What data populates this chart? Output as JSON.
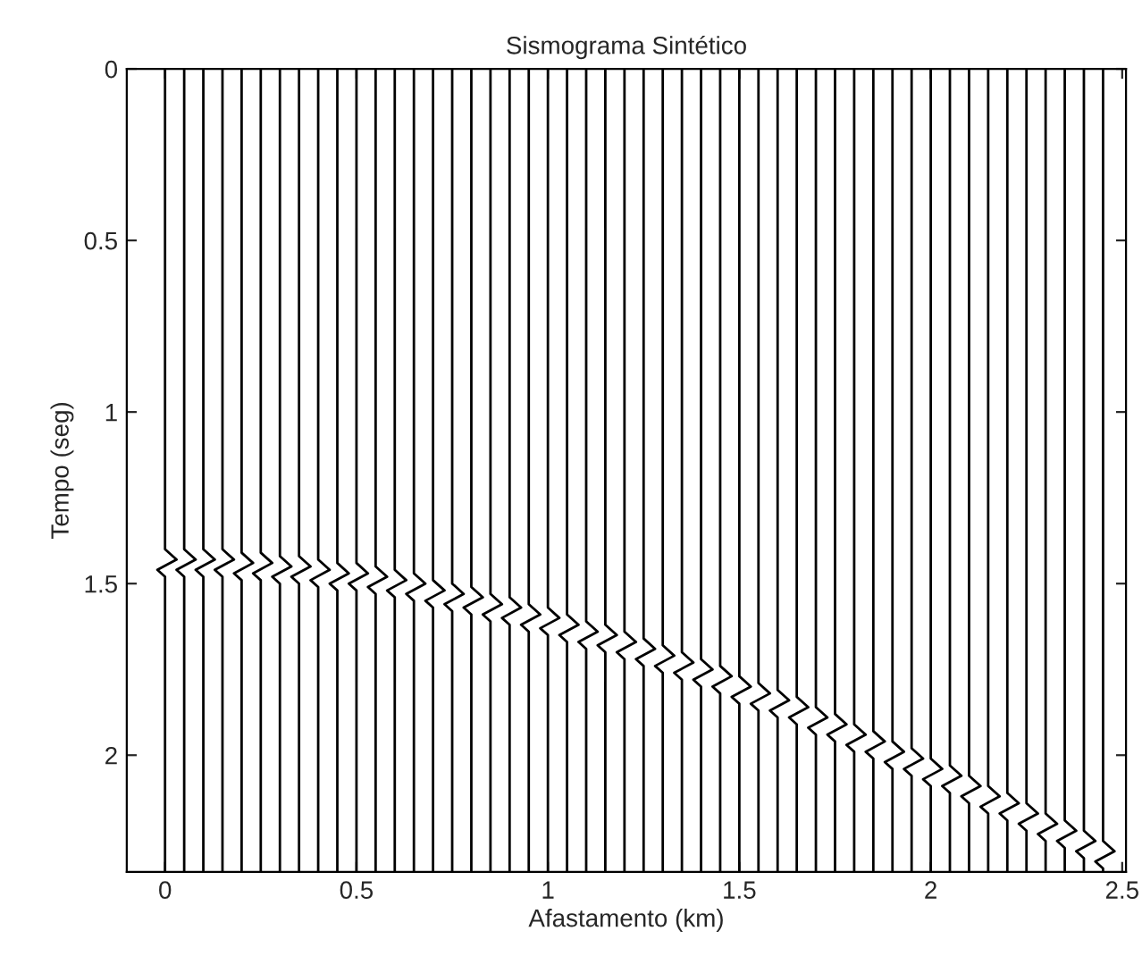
{
  "chart_data": {
    "type": "line",
    "title": "Sismograma Sintético",
    "xlabel": "Afastamento (km)",
    "ylabel": "Tempo (seg)",
    "color": "#000000",
    "grid": false,
    "legend": false,
    "marker": "none",
    "line_style": "solid",
    "xlim": [
      -0.1,
      2.51
    ],
    "xticks": [
      0,
      0.5,
      1,
      1.5,
      2,
      2.5
    ],
    "ylim": [
      2.34,
      0
    ],
    "yticks": [
      0,
      0.5,
      1,
      1.5,
      2
    ],
    "series": [
      {
        "x": [
          0,
          0,
          0.03,
          -0.02,
          0,
          0
        ],
        "values": [
          0,
          1.4,
          1.43,
          1.46,
          1.48,
          2.34
        ]
      },
      {
        "x": [
          0.05,
          0.05,
          0.08,
          0.03,
          0.05,
          0.05
        ],
        "values": [
          0,
          1.4,
          1.43,
          1.46,
          1.48,
          2.34
        ]
      },
      {
        "x": [
          0.1,
          0.1,
          0.13,
          0.08,
          0.1,
          0.1
        ],
        "values": [
          0,
          1.4,
          1.43,
          1.46,
          1.48,
          2.34
        ]
      },
      {
        "x": [
          0.15,
          0.15,
          0.18,
          0.13,
          0.15,
          0.15
        ],
        "values": [
          0,
          1.4,
          1.43,
          1.46,
          1.48,
          2.34
        ]
      },
      {
        "x": [
          0.2,
          0.2,
          0.23,
          0.18,
          0.2,
          0.2
        ],
        "values": [
          0,
          1.41,
          1.44,
          1.47,
          1.49,
          2.34
        ]
      },
      {
        "x": [
          0.25,
          0.25,
          0.28,
          0.23,
          0.25,
          0.25
        ],
        "values": [
          0,
          1.41,
          1.44,
          1.47,
          1.49,
          2.34
        ]
      },
      {
        "x": [
          0.3,
          0.3,
          0.33,
          0.28,
          0.3,
          0.3
        ],
        "values": [
          0,
          1.42,
          1.45,
          1.48,
          1.5,
          2.34
        ]
      },
      {
        "x": [
          0.35,
          0.35,
          0.38,
          0.33,
          0.35,
          0.35
        ],
        "values": [
          0,
          1.42,
          1.45,
          1.48,
          1.5,
          2.34
        ]
      },
      {
        "x": [
          0.4,
          0.4,
          0.43,
          0.38,
          0.4,
          0.4
        ],
        "values": [
          0,
          1.43,
          1.46,
          1.49,
          1.51,
          2.34
        ]
      },
      {
        "x": [
          0.45,
          0.45,
          0.48,
          0.43,
          0.45,
          0.45
        ],
        "values": [
          0,
          1.44,
          1.47,
          1.5,
          1.52,
          2.34
        ]
      },
      {
        "x": [
          0.5,
          0.5,
          0.53,
          0.48,
          0.5,
          0.5
        ],
        "values": [
          0,
          1.44,
          1.47,
          1.5,
          1.52,
          2.34
        ]
      },
      {
        "x": [
          0.55,
          0.55,
          0.58,
          0.53,
          0.55,
          0.55
        ],
        "values": [
          0,
          1.45,
          1.48,
          1.51,
          1.53,
          2.34
        ]
      },
      {
        "x": [
          0.6,
          0.6,
          0.63,
          0.58,
          0.6,
          0.6
        ],
        "values": [
          0,
          1.46,
          1.49,
          1.52,
          1.54,
          2.34
        ]
      },
      {
        "x": [
          0.65,
          0.65,
          0.68,
          0.63,
          0.65,
          0.65
        ],
        "values": [
          0,
          1.47,
          1.5,
          1.53,
          1.55,
          2.34
        ]
      },
      {
        "x": [
          0.7,
          0.7,
          0.73,
          0.68,
          0.7,
          0.7
        ],
        "values": [
          0,
          1.49,
          1.52,
          1.55,
          1.57,
          2.34
        ]
      },
      {
        "x": [
          0.75,
          0.75,
          0.78,
          0.73,
          0.75,
          0.75
        ],
        "values": [
          0,
          1.5,
          1.53,
          1.56,
          1.58,
          2.34
        ]
      },
      {
        "x": [
          0.8,
          0.8,
          0.83,
          0.78,
          0.8,
          0.8
        ],
        "values": [
          0,
          1.51,
          1.54,
          1.57,
          1.59,
          2.34
        ]
      },
      {
        "x": [
          0.85,
          0.85,
          0.88,
          0.83,
          0.85,
          0.85
        ],
        "values": [
          0,
          1.53,
          1.56,
          1.59,
          1.61,
          2.34
        ]
      },
      {
        "x": [
          0.9,
          0.9,
          0.93,
          0.88,
          0.9,
          0.9
        ],
        "values": [
          0,
          1.54,
          1.57,
          1.6,
          1.62,
          2.34
        ]
      },
      {
        "x": [
          0.95,
          0.95,
          0.98,
          0.93,
          0.95,
          0.95
        ],
        "values": [
          0,
          1.56,
          1.59,
          1.62,
          1.64,
          2.34
        ]
      },
      {
        "x": [
          1.0,
          1.0,
          1.03,
          0.98,
          1.0,
          1.0
        ],
        "values": [
          0,
          1.57,
          1.6,
          1.63,
          1.65,
          2.34
        ]
      },
      {
        "x": [
          1.05,
          1.05,
          1.08,
          1.03,
          1.05,
          1.05
        ],
        "values": [
          0,
          1.59,
          1.62,
          1.65,
          1.67,
          2.34
        ]
      },
      {
        "x": [
          1.1,
          1.1,
          1.13,
          1.08,
          1.1,
          1.1
        ],
        "values": [
          0,
          1.61,
          1.64,
          1.67,
          1.69,
          2.34
        ]
      },
      {
        "x": [
          1.15,
          1.15,
          1.18,
          1.13,
          1.15,
          1.15
        ],
        "values": [
          0,
          1.62,
          1.65,
          1.68,
          1.7,
          2.34
        ]
      },
      {
        "x": [
          1.2,
          1.2,
          1.23,
          1.18,
          1.2,
          1.2
        ],
        "values": [
          0,
          1.64,
          1.67,
          1.7,
          1.72,
          2.34
        ]
      },
      {
        "x": [
          1.25,
          1.25,
          1.28,
          1.23,
          1.25,
          1.25
        ],
        "values": [
          0,
          1.66,
          1.69,
          1.72,
          1.74,
          2.34
        ]
      },
      {
        "x": [
          1.3,
          1.3,
          1.33,
          1.28,
          1.3,
          1.3
        ],
        "values": [
          0,
          1.68,
          1.71,
          1.74,
          1.76,
          2.34
        ]
      },
      {
        "x": [
          1.35,
          1.35,
          1.38,
          1.33,
          1.35,
          1.35
        ],
        "values": [
          0,
          1.7,
          1.73,
          1.76,
          1.78,
          2.34
        ]
      },
      {
        "x": [
          1.4,
          1.4,
          1.43,
          1.38,
          1.4,
          1.4
        ],
        "values": [
          0,
          1.72,
          1.75,
          1.78,
          1.8,
          2.34
        ]
      },
      {
        "x": [
          1.45,
          1.45,
          1.48,
          1.43,
          1.45,
          1.45
        ],
        "values": [
          0,
          1.74,
          1.77,
          1.8,
          1.82,
          2.34
        ]
      },
      {
        "x": [
          1.5,
          1.5,
          1.53,
          1.48,
          1.5,
          1.5
        ],
        "values": [
          0,
          1.77,
          1.8,
          1.83,
          1.85,
          2.34
        ]
      },
      {
        "x": [
          1.55,
          1.55,
          1.58,
          1.53,
          1.55,
          1.55
        ],
        "values": [
          0,
          1.79,
          1.82,
          1.85,
          1.87,
          2.34
        ]
      },
      {
        "x": [
          1.6,
          1.6,
          1.63,
          1.58,
          1.6,
          1.6
        ],
        "values": [
          0,
          1.81,
          1.84,
          1.87,
          1.89,
          2.34
        ]
      },
      {
        "x": [
          1.65,
          1.65,
          1.68,
          1.63,
          1.65,
          1.65
        ],
        "values": [
          0,
          1.83,
          1.86,
          1.89,
          1.91,
          2.34
        ]
      },
      {
        "x": [
          1.7,
          1.7,
          1.73,
          1.68,
          1.7,
          1.7
        ],
        "values": [
          0,
          1.86,
          1.89,
          1.92,
          1.94,
          2.34
        ]
      },
      {
        "x": [
          1.75,
          1.75,
          1.78,
          1.73,
          1.75,
          1.75
        ],
        "values": [
          0,
          1.88,
          1.91,
          1.94,
          1.96,
          2.34
        ]
      },
      {
        "x": [
          1.8,
          1.8,
          1.83,
          1.78,
          1.8,
          1.8
        ],
        "values": [
          0,
          1.91,
          1.94,
          1.97,
          1.99,
          2.34
        ]
      },
      {
        "x": [
          1.85,
          1.85,
          1.88,
          1.83,
          1.85,
          1.85
        ],
        "values": [
          0,
          1.93,
          1.96,
          1.99,
          2.01,
          2.34
        ]
      },
      {
        "x": [
          1.9,
          1.9,
          1.93,
          1.88,
          1.9,
          1.9
        ],
        "values": [
          0,
          1.96,
          1.99,
          2.02,
          2.04,
          2.34
        ]
      },
      {
        "x": [
          1.95,
          1.95,
          1.98,
          1.93,
          1.95,
          1.95
        ],
        "values": [
          0,
          1.98,
          2.01,
          2.04,
          2.06,
          2.34
        ]
      },
      {
        "x": [
          2.0,
          2.0,
          2.03,
          1.98,
          2.0,
          2.0
        ],
        "values": [
          0,
          2.01,
          2.04,
          2.07,
          2.09,
          2.34
        ]
      },
      {
        "x": [
          2.05,
          2.05,
          2.08,
          2.03,
          2.05,
          2.05
        ],
        "values": [
          0,
          2.03,
          2.06,
          2.09,
          2.11,
          2.34
        ]
      },
      {
        "x": [
          2.1,
          2.1,
          2.13,
          2.08,
          2.1,
          2.1
        ],
        "values": [
          0,
          2.06,
          2.09,
          2.12,
          2.14,
          2.34
        ]
      },
      {
        "x": [
          2.15,
          2.15,
          2.18,
          2.13,
          2.15,
          2.15
        ],
        "values": [
          0,
          2.09,
          2.12,
          2.15,
          2.17,
          2.34
        ]
      },
      {
        "x": [
          2.2,
          2.2,
          2.23,
          2.18,
          2.2,
          2.2
        ],
        "values": [
          0,
          2.11,
          2.14,
          2.17,
          2.19,
          2.34
        ]
      },
      {
        "x": [
          2.25,
          2.25,
          2.28,
          2.23,
          2.25,
          2.25
        ],
        "values": [
          0,
          2.14,
          2.17,
          2.2,
          2.22,
          2.34
        ]
      },
      {
        "x": [
          2.3,
          2.3,
          2.33,
          2.28,
          2.3,
          2.3
        ],
        "values": [
          0,
          2.17,
          2.2,
          2.23,
          2.25,
          2.34
        ]
      },
      {
        "x": [
          2.35,
          2.35,
          2.38,
          2.33,
          2.35,
          2.35
        ],
        "values": [
          0,
          2.19,
          2.22,
          2.25,
          2.27,
          2.34
        ]
      },
      {
        "x": [
          2.4,
          2.4,
          2.43,
          2.38,
          2.4,
          2.4
        ],
        "values": [
          0,
          2.22,
          2.25,
          2.28,
          2.3,
          2.34
        ]
      },
      {
        "x": [
          2.45,
          2.45,
          2.48,
          2.43,
          2.45,
          2.45
        ],
        "values": [
          0,
          2.25,
          2.28,
          2.31,
          2.33,
          2.34
        ]
      }
    ]
  }
}
